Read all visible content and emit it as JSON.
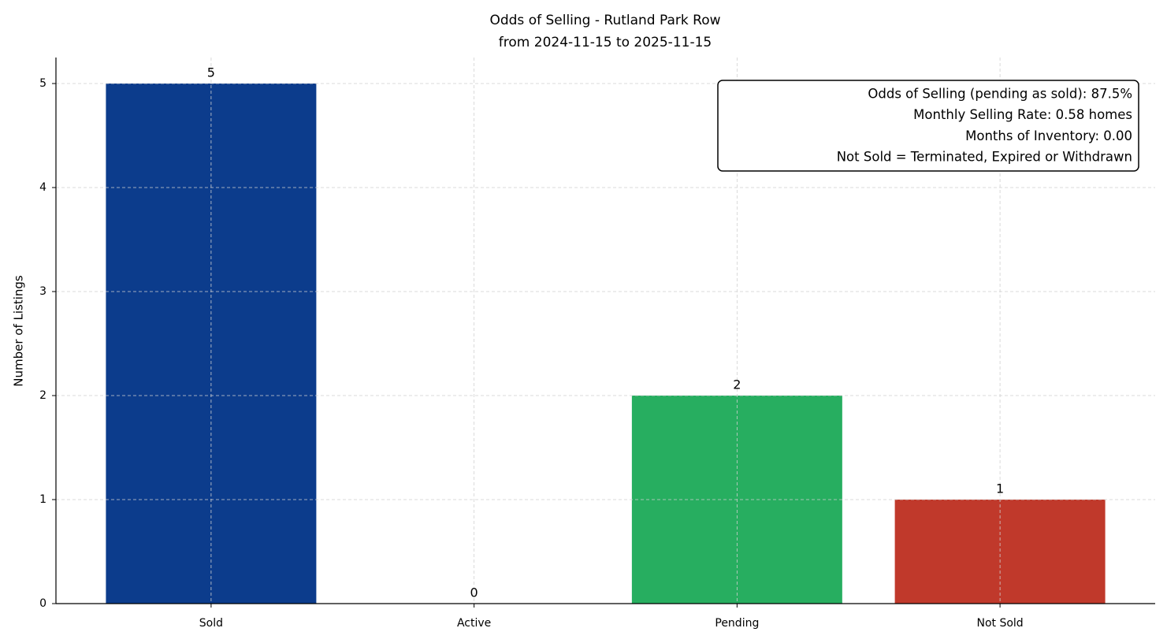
{
  "chart_data": {
    "type": "bar",
    "title": "Odds of Selling - Rutland Park Row",
    "subtitle": "from 2024-11-15 to 2025-11-15",
    "y_label": "Number of Listings",
    "categories": [
      "Sold",
      "Active",
      "Pending",
      "Not Sold"
    ],
    "values": [
      5,
      0,
      2,
      1
    ],
    "colors": [
      "#0c3c8c",
      "#1f77b4",
      "#27ae60",
      "#c0392b"
    ],
    "ylim": [
      0,
      5.25
    ],
    "yticks": [
      0,
      1,
      2,
      3,
      4,
      5
    ],
    "grid": true,
    "annotation": [
      "Odds of Selling (pending as sold): 87.5%",
      "Monthly Selling Rate: 0.58 homes",
      "Months of Inventory: 0.00",
      "Not Sold = Terminated, Expired or Withdrawn"
    ]
  }
}
